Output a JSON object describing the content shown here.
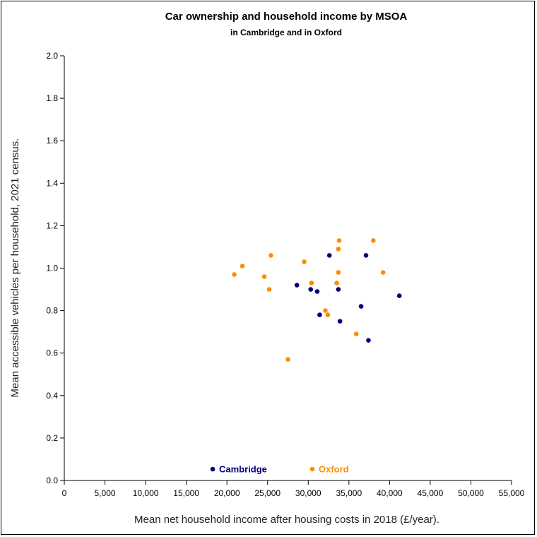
{
  "chart_data": {
    "type": "scatter",
    "title": "Car ownership and household income by MSOA",
    "subtitle": "in Cambridge and in Oxford",
    "xlabel": "Mean net household income after housing costs in 2018 (£/year).",
    "ylabel": "Mean accessible vehicles per household, 2021 census.",
    "xlim": [
      0,
      55000
    ],
    "ylim": [
      0,
      2.0
    ],
    "x_ticks": [
      0,
      5000,
      10000,
      15000,
      20000,
      25000,
      30000,
      35000,
      40000,
      45000,
      50000,
      55000
    ],
    "x_tick_labels": [
      "0",
      "5,000",
      "10,000",
      "15,000",
      "20,000",
      "25,000",
      "30,000",
      "35,000",
      "40,000",
      "45,000",
      "50,000",
      "55,000"
    ],
    "y_ticks": [
      0,
      0.2,
      0.4,
      0.6,
      0.8,
      1.0,
      1.2,
      1.4,
      1.6,
      1.8,
      2.0
    ],
    "y_tick_labels": [
      "0.0",
      "0.2",
      "0.4",
      "0.6",
      "0.8",
      "1.0",
      "1.2",
      "1.4",
      "1.6",
      "1.8",
      "2.0"
    ],
    "grid": false,
    "legend_position": "bottom-center",
    "series": [
      {
        "name": "Cambridge",
        "color": "#00007f",
        "points": [
          {
            "x": 28600,
            "y": 0.92
          },
          {
            "x": 30300,
            "y": 0.9
          },
          {
            "x": 31100,
            "y": 0.89
          },
          {
            "x": 31400,
            "y": 0.78
          },
          {
            "x": 32600,
            "y": 1.06
          },
          {
            "x": 33700,
            "y": 0.9
          },
          {
            "x": 33900,
            "y": 0.75
          },
          {
            "x": 36500,
            "y": 0.82
          },
          {
            "x": 37100,
            "y": 1.06
          },
          {
            "x": 37400,
            "y": 0.66
          },
          {
            "x": 41200,
            "y": 0.87
          }
        ]
      },
      {
        "name": "Oxford",
        "color": "#ff8c00",
        "points": [
          {
            "x": 20900,
            "y": 0.97
          },
          {
            "x": 21900,
            "y": 1.01
          },
          {
            "x": 24600,
            "y": 0.96
          },
          {
            "x": 25200,
            "y": 0.9
          },
          {
            "x": 25400,
            "y": 1.06
          },
          {
            "x": 27500,
            "y": 0.57
          },
          {
            "x": 29500,
            "y": 1.03
          },
          {
            "x": 30400,
            "y": 0.93
          },
          {
            "x": 32100,
            "y": 0.8
          },
          {
            "x": 32400,
            "y": 0.78
          },
          {
            "x": 33500,
            "y": 0.93
          },
          {
            "x": 33700,
            "y": 1.09
          },
          {
            "x": 33700,
            "y": 0.98
          },
          {
            "x": 33800,
            "y": 1.13
          },
          {
            "x": 35900,
            "y": 0.69
          },
          {
            "x": 38000,
            "y": 1.13
          },
          {
            "x": 39200,
            "y": 0.98
          }
        ]
      }
    ]
  }
}
